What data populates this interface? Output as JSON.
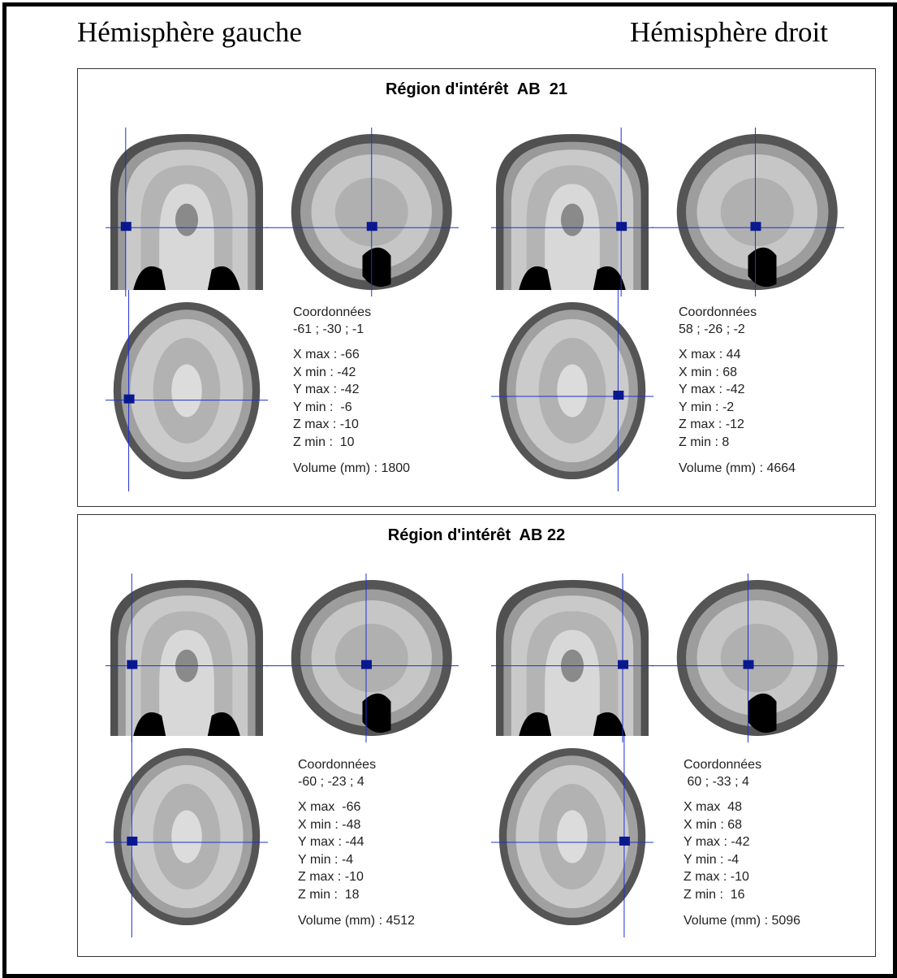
{
  "header": {
    "left": "Hémisphère gauche",
    "right": "Hémisphère droit"
  },
  "panels": [
    {
      "title": "Région d'intérêt  AB  21",
      "hemispheres": [
        {
          "coords_label": "Coordonnées",
          "coords": "-61 ; -30 ; -1",
          "stats": [
            "X max : -66",
            "X min : -42",
            "Y max : -42",
            "Y min :  -6",
            "Z max : -10",
            "Z min :  10"
          ],
          "volume": "Volume (mm) : 1800"
        },
        {
          "coords_label": "Coordonnées",
          "coords": "58 ; -26 ; -2",
          "stats": [
            "X max : 44",
            "X min : 68",
            "Y max : -42",
            "Y min : -2",
            "Z max : -12",
            "Z min : 8"
          ],
          "volume": "Volume (mm) : 4664"
        }
      ]
    },
    {
      "title": "Région d'intérêt  AB 22",
      "hemispheres": [
        {
          "coords_label": "Coordonnées",
          "coords": "-60 ; -23 ; 4",
          "stats": [
            "X max  -66",
            "X min : -48",
            "Y max : -44",
            "Y min : -4",
            "Z max : -10",
            "Z min :  18"
          ],
          "volume": "Volume (mm) : 4512"
        },
        {
          "coords_label": "Coordonnées",
          "coords": " 60 ; -33 ; 4",
          "stats": [
            "X max  48",
            "X min : 68",
            "Y max : -42",
            "Y min : -4",
            "Z max : -10",
            "Z min :  16"
          ],
          "volume": "Volume (mm) : 5096"
        }
      ]
    }
  ]
}
